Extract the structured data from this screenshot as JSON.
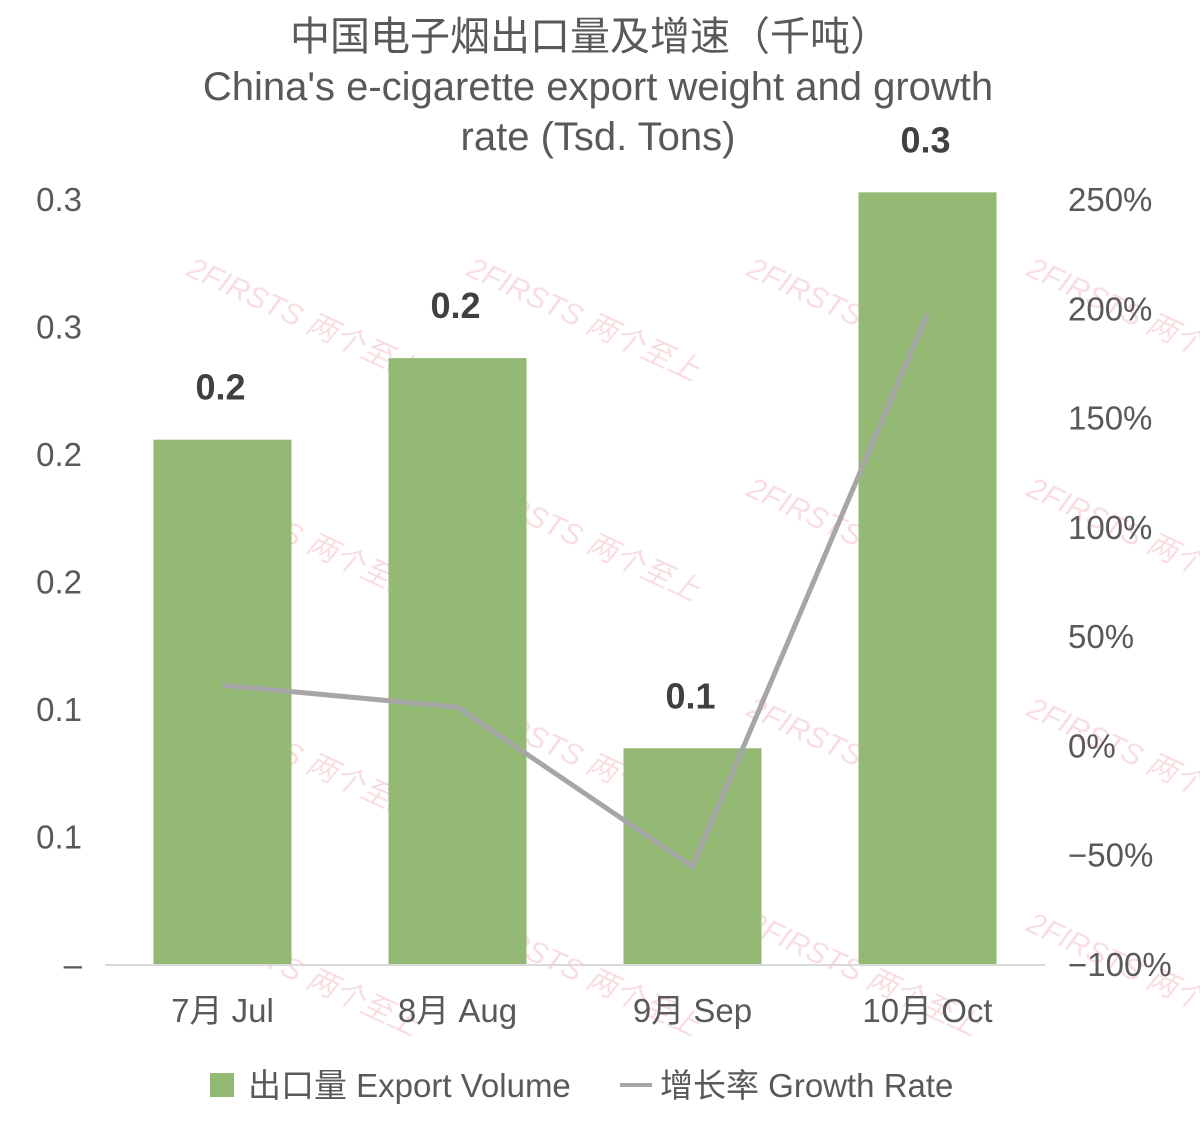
{
  "chart_data": {
    "type": "bar",
    "title_zh": "中国电子烟出口量及增速（千吨）",
    "title_en_line1": "China's e-cigarette export weight and growth",
    "title_en_line2": "rate (Tsd. Tons)",
    "categories": [
      "7月 Jul",
      "8月 Aug",
      "9月 Sep",
      "10月 Oct"
    ],
    "series": [
      {
        "name": "出口量 Export Volume",
        "type": "bar",
        "axis": "left",
        "color": "#93b975",
        "values": [
          0.206,
          0.238,
          0.085,
          0.303
        ],
        "data_labels": [
          "0.2",
          "0.2",
          "0.1",
          "0.3"
        ]
      },
      {
        "name": "增长率 Growth Rate",
        "type": "line",
        "axis": "right",
        "color": "#a6a6a6",
        "values": [
          28,
          18,
          -55,
          198
        ]
      }
    ],
    "y_left": {
      "range": [
        0,
        0.3
      ],
      "ticks": [
        0,
        0.05,
        0.1,
        0.15,
        0.2,
        0.25,
        0.3
      ],
      "tick_labels": [
        "–",
        "0.1",
        "0.1",
        "0.2",
        "0.2",
        "0.3",
        "0.3"
      ]
    },
    "y_right": {
      "range": [
        -100,
        250
      ],
      "ticks": [
        -100,
        -50,
        0,
        50,
        100,
        150,
        200,
        250
      ],
      "tick_labels": [
        "−100%",
        "−50%",
        "0%",
        "50%",
        "100%",
        "150%",
        "200%",
        "250%"
      ]
    },
    "legend_position": "bottom",
    "grid": false
  },
  "watermark": {
    "text": "2FIRSTS 两个至上"
  }
}
